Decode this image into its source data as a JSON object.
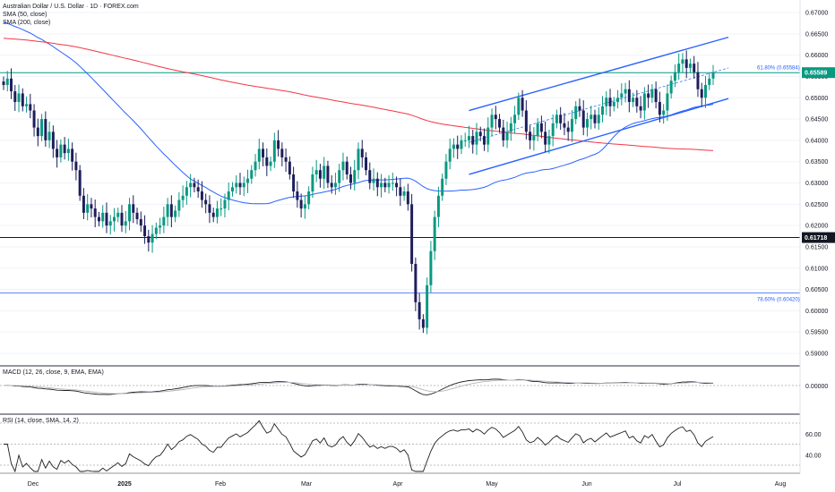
{
  "header": {
    "title": "Australian Dollar / U.S. Dollar · 1D · FOREX.com",
    "sma50": "SMA (50, close)",
    "sma200": "SMA (200, close)"
  },
  "macd_label": "MACD (12, 26, close, 9, EMA, EMA)",
  "rsi_label": "RSI (14, close, SMA, 14, 2)",
  "colors": {
    "up": "#089981",
    "down": "#1e1e5c",
    "sma50": "#2962ff",
    "sma200": "#f23645",
    "channel": "#2962ff",
    "last_price": "#089981",
    "level": "#131722"
  },
  "chart_data": {
    "type": "candlestick",
    "title": "Australian Dollar / U.S. Dollar · 1D · FOREX.com",
    "x_ticks": [
      "Dec",
      "2025",
      "Feb",
      "Mar",
      "Apr",
      "May",
      "Jun",
      "Jul",
      "Aug"
    ],
    "y_ticks": [
      "0.67000",
      "0.66500",
      "0.66000",
      "0.65500",
      "0.65000",
      "0.64500",
      "0.64000",
      "0.63500",
      "0.63000",
      "0.62500",
      "0.62000",
      "0.61500",
      "0.61000",
      "0.60500",
      "0.60000",
      "0.59500",
      "0.59000"
    ],
    "ylim": [
      0.5885,
      0.6718
    ],
    "last_price": "0.65589",
    "level_price": "0.61718",
    "fib_618": {
      "label": "61.80% (0.65584)",
      "value": 0.65584
    },
    "fib_786": {
      "label": "78.60% (0.60420)",
      "value": 0.6042
    },
    "closes": [
      0.653,
      0.6545,
      0.6515,
      0.649,
      0.651,
      0.648,
      0.6485,
      0.647,
      0.643,
      0.641,
      0.645,
      0.64,
      0.642,
      0.638,
      0.636,
      0.639,
      0.637,
      0.638,
      0.635,
      0.633,
      0.627,
      0.623,
      0.625,
      0.624,
      0.622,
      0.621,
      0.623,
      0.62,
      0.621,
      0.622,
      0.623,
      0.62,
      0.621,
      0.625,
      0.623,
      0.6215,
      0.62,
      0.6175,
      0.616,
      0.618,
      0.6195,
      0.62,
      0.622,
      0.625,
      0.622,
      0.6235,
      0.626,
      0.627,
      0.629,
      0.63,
      0.629,
      0.628,
      0.626,
      0.625,
      0.623,
      0.622,
      0.624,
      0.624,
      0.626,
      0.628,
      0.629,
      0.63,
      0.629,
      0.63,
      0.631,
      0.633,
      0.635,
      0.638,
      0.636,
      0.634,
      0.635,
      0.64,
      0.638,
      0.636,
      0.635,
      0.632,
      0.628,
      0.626,
      0.624,
      0.625,
      0.628,
      0.632,
      0.633,
      0.631,
      0.634,
      0.63,
      0.629,
      0.63,
      0.633,
      0.635,
      0.632,
      0.63,
      0.633,
      0.638,
      0.636,
      0.633,
      0.63,
      0.631,
      0.629,
      0.63,
      0.629,
      0.63,
      0.63,
      0.629,
      0.627,
      0.628,
      0.625,
      0.611,
      0.602,
      0.598,
      0.596,
      0.606,
      0.614,
      0.622,
      0.627,
      0.631,
      0.635,
      0.638,
      0.639,
      0.638,
      0.64,
      0.64,
      0.641,
      0.639,
      0.642,
      0.641,
      0.639,
      0.643,
      0.646,
      0.645,
      0.643,
      0.64,
      0.642,
      0.644,
      0.646,
      0.65,
      0.647,
      0.642,
      0.64,
      0.641,
      0.644,
      0.642,
      0.639,
      0.641,
      0.644,
      0.646,
      0.644,
      0.643,
      0.642,
      0.645,
      0.648,
      0.647,
      0.643,
      0.645,
      0.646,
      0.644,
      0.646,
      0.648,
      0.65,
      0.648,
      0.649,
      0.65,
      0.651,
      0.652,
      0.649,
      0.65,
      0.648,
      0.647,
      0.651,
      0.65,
      0.652,
      0.649,
      0.646,
      0.647,
      0.651,
      0.654,
      0.656,
      0.658,
      0.659,
      0.657,
      0.658,
      0.656,
      0.652,
      0.65,
      0.653,
      0.6545,
      0.6559
    ],
    "sma50_start": 0.668,
    "sma200_start": 0.664,
    "macd_zero_label": "0.00000",
    "rsi_ticks": [
      "60.00",
      "40.00"
    ]
  }
}
